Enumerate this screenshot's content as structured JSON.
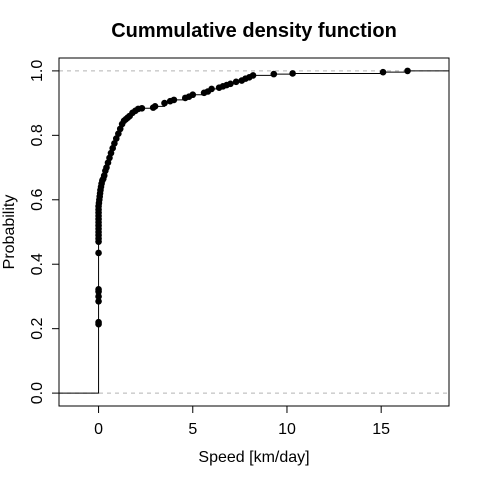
{
  "chart_data": {
    "type": "scatter",
    "title": "Cummulative density function",
    "xlabel": "Speed [km/day]",
    "ylabel": "Probability",
    "xlim": [
      -2.1,
      18.6
    ],
    "ylim": [
      -0.04,
      1.04
    ],
    "xticks": [
      0,
      5,
      10,
      15
    ],
    "xtick_labels": [
      "0",
      "5",
      "10",
      "15"
    ],
    "yticks": [
      0.0,
      0.2,
      0.4,
      0.6,
      0.8,
      1.0
    ],
    "ytick_labels": [
      "0.0",
      "0.2",
      "0.4",
      "0.6",
      "0.8",
      "1.0"
    ],
    "reference_lines_y": [
      0.0,
      1.0
    ],
    "grid": false,
    "step_line": true,
    "colors": {
      "points": "#000000",
      "line": "#000000",
      "reference": "#b3b3b3"
    },
    "series": [
      {
        "x": [
          0.0,
          0.0,
          0.0,
          0.0,
          0.0,
          0.0,
          0.0,
          0.0,
          0.0,
          0.0,
          0.0,
          0.0,
          0.0,
          0.0,
          0.0,
          0.0,
          0.0,
          0.0,
          0.0,
          0.02,
          0.04,
          0.06,
          0.08,
          0.1,
          0.13,
          0.16,
          0.2,
          0.25,
          0.3,
          0.36,
          0.42,
          0.5,
          0.58,
          0.66,
          0.75,
          0.84,
          0.94,
          1.05,
          1.15,
          1.25,
          1.35,
          1.45,
          1.55,
          1.65,
          1.8,
          1.95,
          2.1,
          2.3,
          2.9,
          3.0,
          3.5,
          3.8,
          4.0,
          4.6,
          4.8,
          5.0,
          5.6,
          5.8,
          6.0,
          6.4,
          6.6,
          6.8,
          7.0,
          7.3,
          7.6,
          7.8,
          8.0,
          8.2,
          9.3,
          10.3,
          15.1,
          16.4
        ],
        "y": [
          0.214,
          0.22,
          0.285,
          0.3,
          0.315,
          0.322,
          0.435,
          0.47,
          0.48,
          0.49,
          0.5,
          0.51,
          0.52,
          0.53,
          0.54,
          0.55,
          0.56,
          0.57,
          0.58,
          0.59,
          0.6,
          0.61,
          0.62,
          0.63,
          0.64,
          0.65,
          0.66,
          0.665,
          0.675,
          0.69,
          0.7,
          0.715,
          0.73,
          0.745,
          0.76,
          0.775,
          0.79,
          0.805,
          0.82,
          0.835,
          0.845,
          0.85,
          0.855,
          0.86,
          0.87,
          0.876,
          0.882,
          0.884,
          0.886,
          0.89,
          0.9,
          0.906,
          0.91,
          0.916,
          0.92,
          0.926,
          0.932,
          0.936,
          0.944,
          0.948,
          0.952,
          0.956,
          0.96,
          0.966,
          0.97,
          0.976,
          0.98,
          0.986,
          0.99,
          0.992,
          0.996,
          1.0
        ]
      }
    ]
  }
}
